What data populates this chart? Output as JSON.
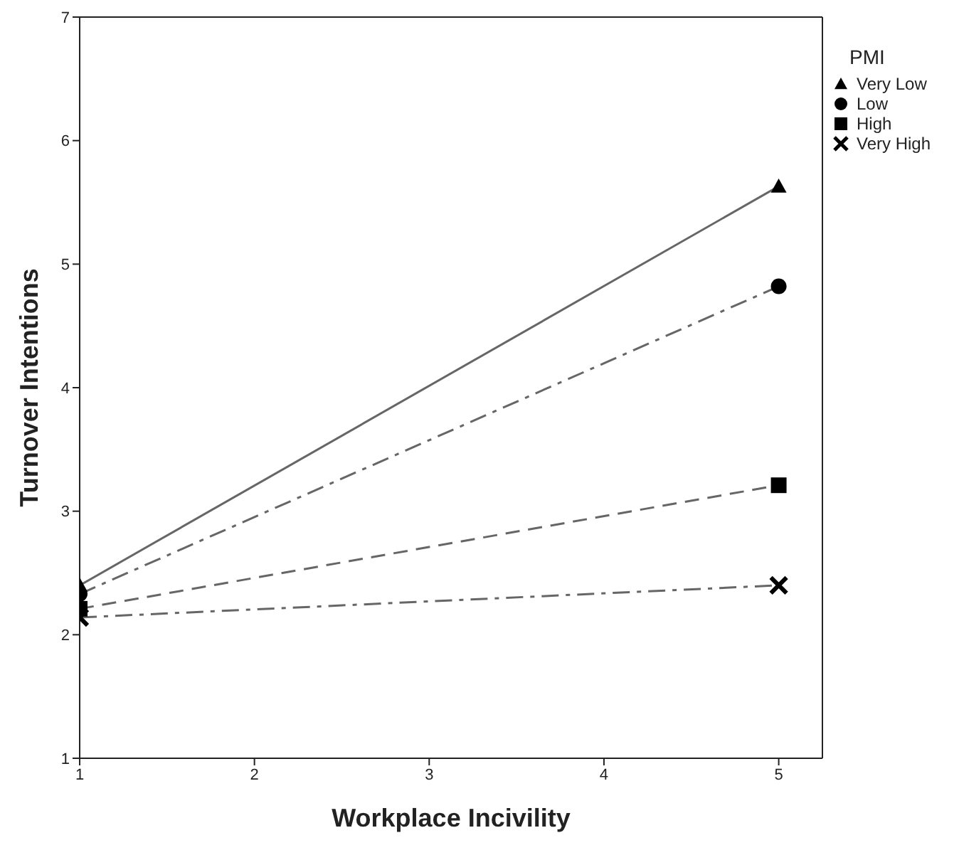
{
  "chart_data": {
    "type": "line",
    "xlabel": "Workplace Incivility",
    "ylabel": "Turnover Intentions",
    "legend_title": "PMI",
    "legend": "top right",
    "x": [
      1,
      5
    ],
    "xlim": [
      1,
      5.25
    ],
    "xticks": [
      1,
      2,
      3,
      4,
      5
    ],
    "ylim": [
      1,
      7
    ],
    "yticks": [
      1,
      2,
      3,
      4,
      5,
      6,
      7
    ],
    "grid": false,
    "series": [
      {
        "name": "Very Low",
        "color": "#666666",
        "values": [
          2.4,
          5.63
        ],
        "marker": "triangle",
        "line_style": "solid"
      },
      {
        "name": "Low",
        "color": "#666666",
        "values": [
          2.33,
          4.82
        ],
        "marker": "circle",
        "line_style": "dashdot"
      },
      {
        "name": "High",
        "color": "#666666",
        "values": [
          2.21,
          3.21
        ],
        "marker": "square",
        "line_style": "dashed"
      },
      {
        "name": "Very High",
        "color": "#666666",
        "values": [
          2.14,
          2.4
        ],
        "marker": "cross",
        "line_style": "dashdot"
      }
    ]
  }
}
